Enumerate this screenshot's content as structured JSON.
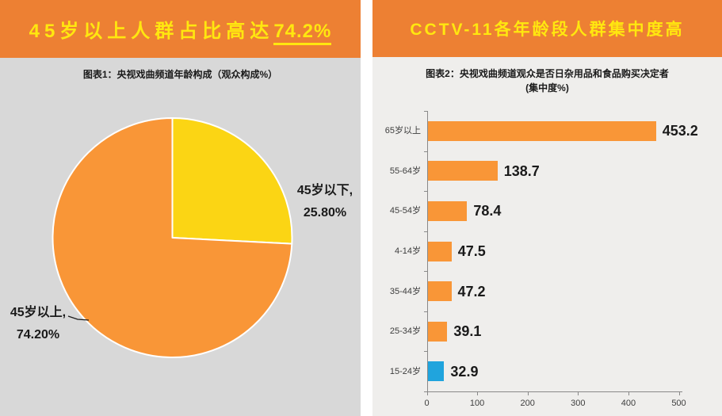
{
  "left_panel": {
    "banner": {
      "prefix": "45岁以上人群占比高达",
      "highlight": "74.2%"
    }
  },
  "right_panel": {
    "banner": {
      "text": "CCTV-11各年龄段人群集中度高"
    }
  },
  "chart_data": [
    {
      "type": "pie",
      "title": "图表1：央视戏曲频道年龄构成（观众构成%）",
      "start_angle": "12-o-clock",
      "direction": "clockwise",
      "slices": [
        {
          "name": "45岁以下",
          "value": 25.8,
          "label_line1": "45岁以下,",
          "label_line2": "25.80%",
          "color": "#FBD514"
        },
        {
          "name": "45岁以上",
          "value": 74.2,
          "label_line1": "45岁以上,",
          "label_line2": "74.20%",
          "color": "#F99637"
        }
      ]
    },
    {
      "type": "bar",
      "orientation": "horizontal",
      "title_line1": "图表2：央视戏曲频道观众是否日杂用品和食品购买决定者",
      "title_line2": "(集中度%)",
      "categories": [
        "65岁以上",
        "55-64岁",
        "45-54岁",
        "4-14岁",
        "35-44岁",
        "25-34岁",
        "15-24岁"
      ],
      "values": [
        453.2,
        138.7,
        78.4,
        47.5,
        47.2,
        39.1,
        32.9
      ],
      "value_labels": [
        "453.2",
        "138.7",
        "78.4",
        "47.5",
        "47.2",
        "39.1",
        "32.9"
      ],
      "bar_colors": [
        "#F99637",
        "#F99637",
        "#F99637",
        "#F99637",
        "#F99637",
        "#F99637",
        "#20A4DD"
      ],
      "xlim": [
        0,
        500
      ],
      "x_ticks": [
        0,
        100,
        200,
        300,
        400,
        500
      ],
      "grid": "off",
      "legend": "none"
    }
  ],
  "colors": {
    "banner_bg": "#ED8033",
    "banner_text": "#FFE70F",
    "left_panel_bg": "#D8D8D8",
    "right_panel_bg": "#EFEEEC",
    "bar_orange": "#F99637",
    "pie_yellow": "#FBD514",
    "highlight_blue": "#20A4DD",
    "axis_gray": "#898989",
    "text_dark": "#1A1A1A"
  }
}
